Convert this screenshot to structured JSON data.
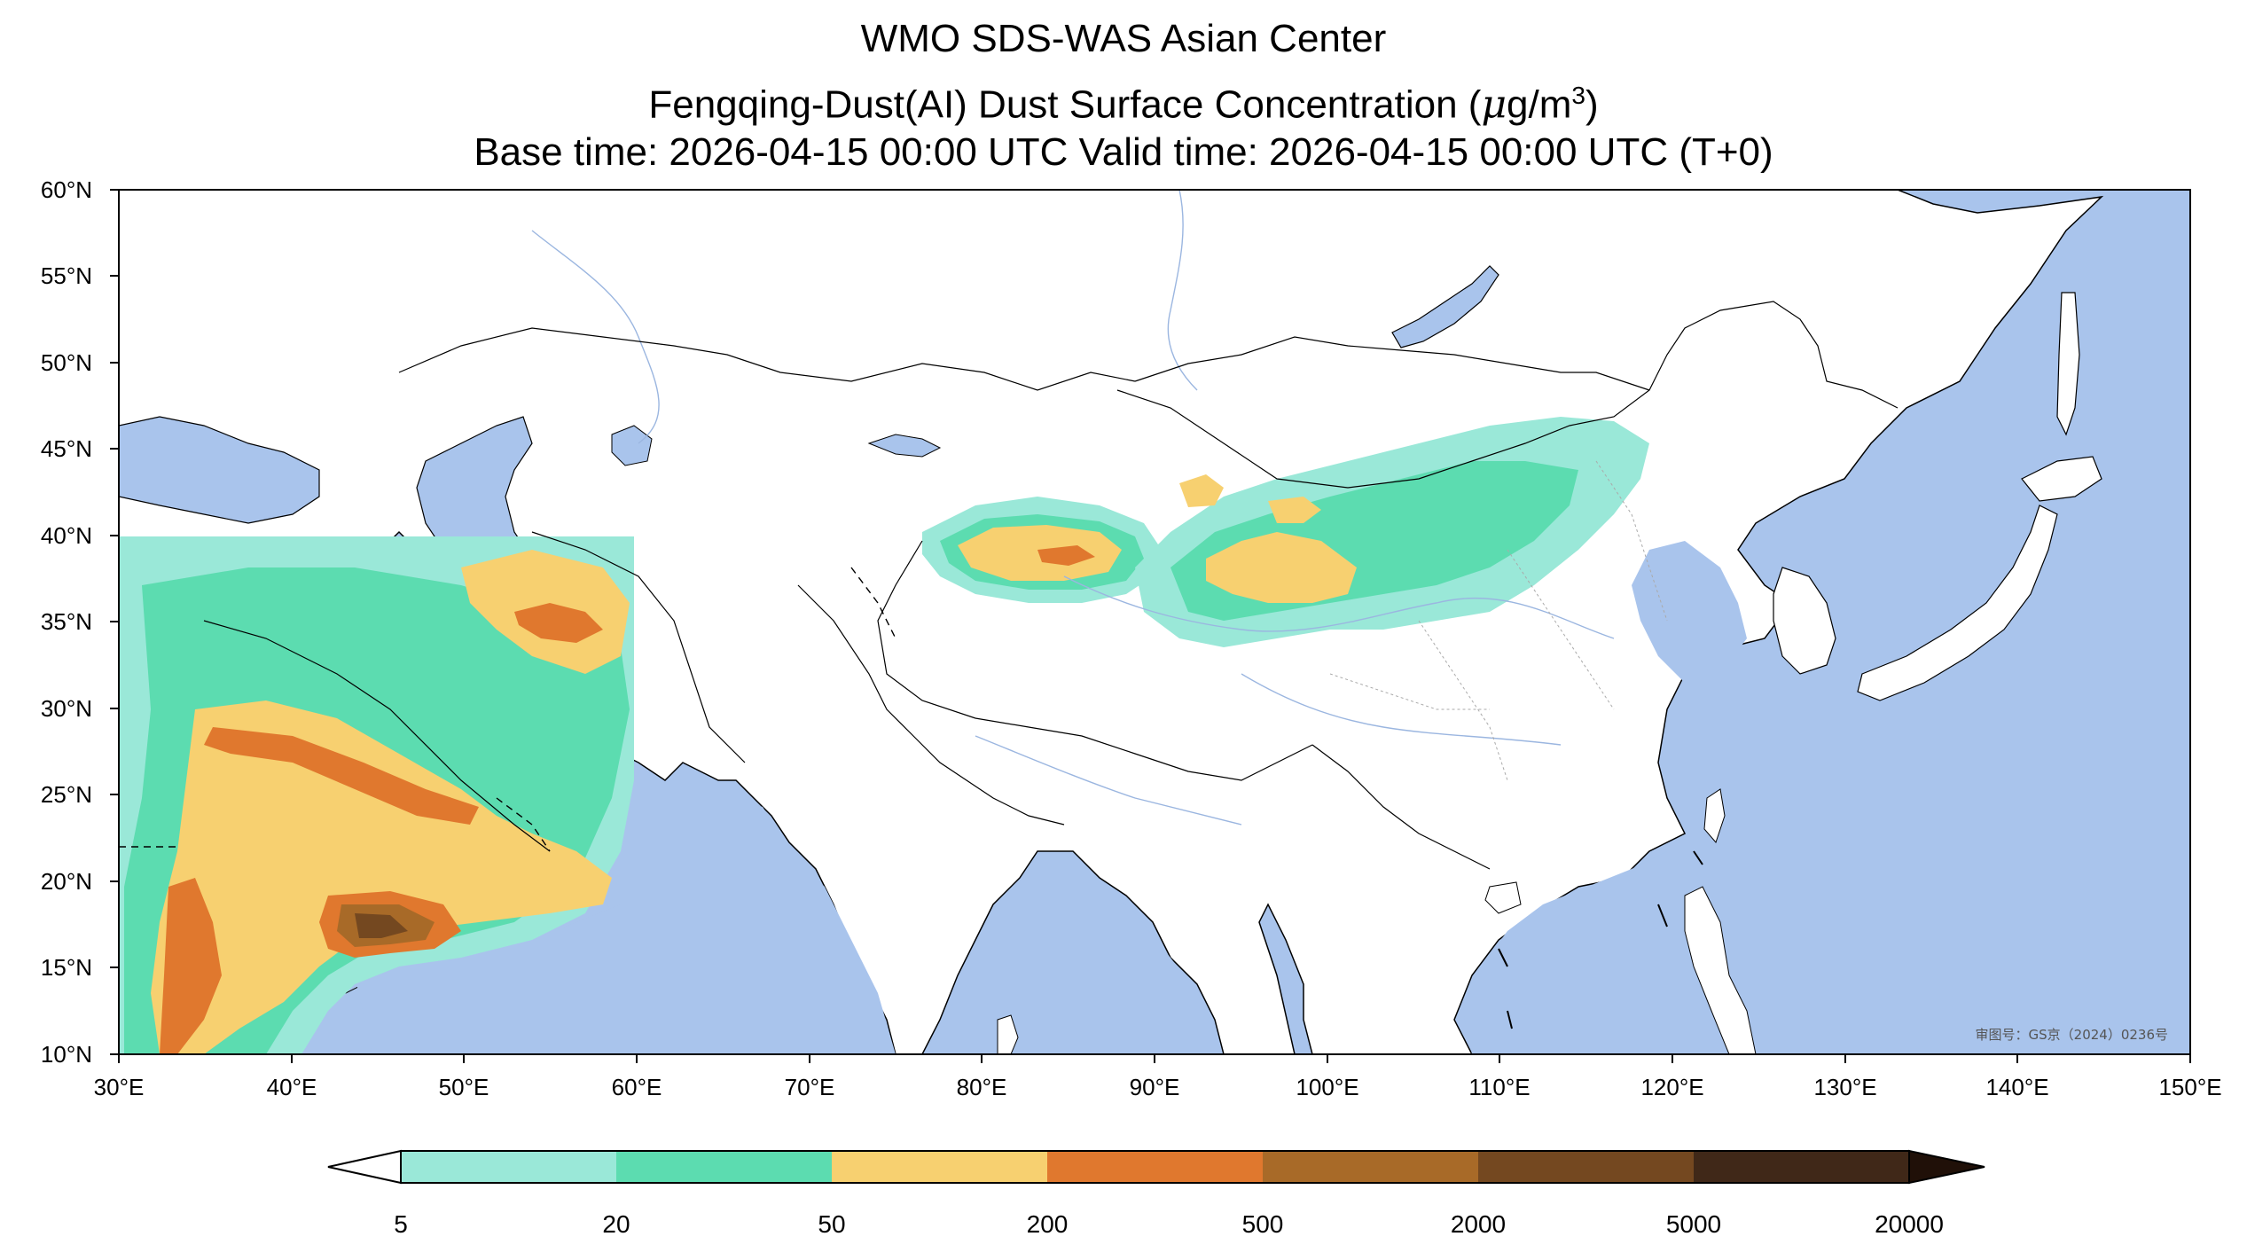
{
  "title": {
    "line1": "WMO SDS-WAS Asian Center",
    "line2_prefix": "Fengqing-Dust(AI) Dust Surface Concentration (",
    "line2_mu": "μ",
    "line2_unit": "g/m",
    "line2_sup": "3",
    "line2_suffix": ")",
    "line3": "Base time: 2026-04-15 00:00 UTC Valid time: 2026-04-15 00:00 UTC (T+0)"
  },
  "map": {
    "lon_range": [
      30,
      150
    ],
    "lat_range": [
      10,
      60
    ],
    "lon_ticks": [
      "30°E",
      "40°E",
      "50°E",
      "60°E",
      "70°E",
      "80°E",
      "90°E",
      "100°E",
      "110°E",
      "120°E",
      "130°E",
      "140°E",
      "150°E"
    ],
    "lat_ticks": [
      "60°N",
      "55°N",
      "50°N",
      "45°N",
      "40°N",
      "35°N",
      "30°N",
      "25°N",
      "20°N",
      "15°N",
      "10°N"
    ],
    "ocean_color": "#a9c4ec",
    "land_color": "#ffffff",
    "approval_text": "审图号：GS京（2024）0236号"
  },
  "colorbar": {
    "levels": [
      "5",
      "20",
      "50",
      "200",
      "500",
      "2000",
      "5000",
      "20000"
    ],
    "colors": [
      "#9ae8d8",
      "#5cdcb0",
      "#f7d070",
      "#e0782e",
      "#a86a28",
      "#744820",
      "#402818"
    ],
    "under_color": "#ffffff",
    "over_color": "#201008"
  }
}
